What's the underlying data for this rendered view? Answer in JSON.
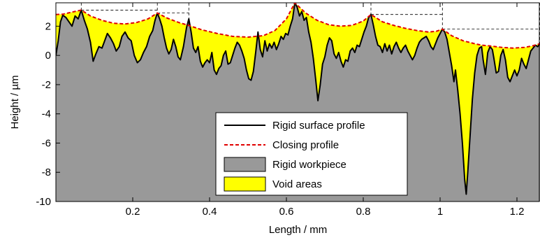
{
  "chart_data": {
    "type": "area",
    "xlabel": "Length / mm",
    "ylabel": "Height / µm",
    "xlim": [
      0,
      1.26
    ],
    "ylim": [
      -10,
      3.6
    ],
    "x_ticks": [
      0.2,
      0.4,
      0.6,
      0.8,
      1,
      1.2
    ],
    "x_tick_labels": [
      "0.2",
      "0.4",
      "0.6",
      "0.8",
      "1",
      "1.2"
    ],
    "y_ticks": [
      2,
      0,
      -2,
      -4,
      -6,
      -8,
      -10
    ],
    "y_tick_labels": [
      "2",
      "0",
      "-2",
      "-4",
      "-6",
      "-8",
      "-10"
    ],
    "legend_position": "lower-center",
    "legend": [
      {
        "label": "Rigid surface profile",
        "style": "line",
        "color": "#000000"
      },
      {
        "label": "Closing profile",
        "style": "dashed-line",
        "color": "#e00000"
      },
      {
        "label": "Rigid workpiece",
        "style": "patch",
        "color": "#999999"
      },
      {
        "label": "Void areas",
        "style": "patch",
        "color": "#ffff00"
      }
    ],
    "colors": {
      "workpiece": "#999999",
      "void": "#ffff00",
      "closing": "#e00000",
      "profile": "#000000"
    },
    "series": [
      {
        "name": "Rigid surface profile",
        "points": [
          [
            0.0,
            0.0
          ],
          [
            0.006,
            1.0
          ],
          [
            0.012,
            2.3
          ],
          [
            0.018,
            2.75
          ],
          [
            0.026,
            2.6
          ],
          [
            0.034,
            2.3
          ],
          [
            0.042,
            2.0
          ],
          [
            0.05,
            2.7
          ],
          [
            0.058,
            2.5
          ],
          [
            0.066,
            3.1
          ],
          [
            0.074,
            2.4
          ],
          [
            0.082,
            1.8
          ],
          [
            0.09,
            0.9
          ],
          [
            0.097,
            -0.4
          ],
          [
            0.104,
            0.1
          ],
          [
            0.112,
            0.6
          ],
          [
            0.12,
            0.5
          ],
          [
            0.127,
            1.0
          ],
          [
            0.134,
            1.5
          ],
          [
            0.142,
            1.2
          ],
          [
            0.15,
            0.8
          ],
          [
            0.157,
            0.3
          ],
          [
            0.165,
            0.6
          ],
          [
            0.172,
            1.3
          ],
          [
            0.18,
            1.6
          ],
          [
            0.188,
            1.2
          ],
          [
            0.196,
            1.0
          ],
          [
            0.204,
            0.0
          ],
          [
            0.212,
            -0.5
          ],
          [
            0.22,
            -0.3
          ],
          [
            0.228,
            0.2
          ],
          [
            0.236,
            0.6
          ],
          [
            0.244,
            1.3
          ],
          [
            0.252,
            1.7
          ],
          [
            0.258,
            2.4
          ],
          [
            0.264,
            2.9
          ],
          [
            0.27,
            2.5
          ],
          [
            0.276,
            2.0
          ],
          [
            0.282,
            1.2
          ],
          [
            0.288,
            0.5
          ],
          [
            0.294,
            0.1
          ],
          [
            0.3,
            0.4
          ],
          [
            0.306,
            1.1
          ],
          [
            0.312,
            0.6
          ],
          [
            0.318,
            -0.1
          ],
          [
            0.324,
            -0.3
          ],
          [
            0.332,
            0.6
          ],
          [
            0.34,
            1.9
          ],
          [
            0.346,
            2.5
          ],
          [
            0.352,
            1.6
          ],
          [
            0.358,
            0.5
          ],
          [
            0.364,
            0.2
          ],
          [
            0.37,
            0.6
          ],
          [
            0.376,
            -0.4
          ],
          [
            0.382,
            -0.8
          ],
          [
            0.388,
            -0.5
          ],
          [
            0.394,
            -0.3
          ],
          [
            0.4,
            -0.5
          ],
          [
            0.406,
            0.2
          ],
          [
            0.412,
            -1.0
          ],
          [
            0.418,
            -1.3
          ],
          [
            0.424,
            -0.9
          ],
          [
            0.43,
            -0.7
          ],
          [
            0.436,
            0.0
          ],
          [
            0.442,
            0.3
          ],
          [
            0.448,
            -0.6
          ],
          [
            0.454,
            -0.5
          ],
          [
            0.46,
            0.0
          ],
          [
            0.466,
            0.5
          ],
          [
            0.472,
            0.9
          ],
          [
            0.478,
            0.7
          ],
          [
            0.484,
            0.3
          ],
          [
            0.49,
            -0.2
          ],
          [
            0.496,
            -1.0
          ],
          [
            0.502,
            -1.6
          ],
          [
            0.508,
            -1.7
          ],
          [
            0.514,
            -1.1
          ],
          [
            0.52,
            0.2
          ],
          [
            0.526,
            1.6
          ],
          [
            0.532,
            0.4
          ],
          [
            0.538,
            -0.1
          ],
          [
            0.544,
            1.0
          ],
          [
            0.55,
            0.3
          ],
          [
            0.556,
            0.8
          ],
          [
            0.562,
            0.5
          ],
          [
            0.568,
            0.9
          ],
          [
            0.574,
            0.4
          ],
          [
            0.58,
            0.8
          ],
          [
            0.586,
            1.3
          ],
          [
            0.592,
            1.1
          ],
          [
            0.598,
            1.5
          ],
          [
            0.604,
            1.4
          ],
          [
            0.61,
            2.0
          ],
          [
            0.616,
            2.5
          ],
          [
            0.622,
            3.6
          ],
          [
            0.628,
            3.3
          ],
          [
            0.634,
            2.7
          ],
          [
            0.64,
            3.0
          ],
          [
            0.646,
            2.4
          ],
          [
            0.652,
            2.6
          ],
          [
            0.658,
            1.6
          ],
          [
            0.664,
            0.9
          ],
          [
            0.67,
            -0.2
          ],
          [
            0.676,
            -1.6
          ],
          [
            0.682,
            -3.1
          ],
          [
            0.688,
            -2.0
          ],
          [
            0.694,
            -0.6
          ],
          [
            0.7,
            -0.1
          ],
          [
            0.706,
            0.7
          ],
          [
            0.712,
            1.2
          ],
          [
            0.718,
            1.0
          ],
          [
            0.724,
            0.1
          ],
          [
            0.73,
            -0.2
          ],
          [
            0.736,
            0.2
          ],
          [
            0.742,
            -0.4
          ],
          [
            0.748,
            -0.8
          ],
          [
            0.754,
            -0.3
          ],
          [
            0.76,
            -0.4
          ],
          [
            0.766,
            0.3
          ],
          [
            0.772,
            0.5
          ],
          [
            0.778,
            0.2
          ],
          [
            0.784,
            0.7
          ],
          [
            0.79,
            0.6
          ],
          [
            0.796,
            1.1
          ],
          [
            0.802,
            1.6
          ],
          [
            0.808,
            2.0
          ],
          [
            0.814,
            2.6
          ],
          [
            0.82,
            2.8
          ],
          [
            0.826,
            2.1
          ],
          [
            0.832,
            1.3
          ],
          [
            0.838,
            0.7
          ],
          [
            0.844,
            0.6
          ],
          [
            0.85,
            0.2
          ],
          [
            0.856,
            0.8
          ],
          [
            0.862,
            0.3
          ],
          [
            0.868,
            0.7
          ],
          [
            0.874,
            0.1
          ],
          [
            0.88,
            0.6
          ],
          [
            0.886,
            0.9
          ],
          [
            0.892,
            0.5
          ],
          [
            0.898,
            0.2
          ],
          [
            0.904,
            0.5
          ],
          [
            0.91,
            0.7
          ],
          [
            0.916,
            0.3
          ],
          [
            0.922,
            0.0
          ],
          [
            0.928,
            -0.3
          ],
          [
            0.934,
            0.0
          ],
          [
            0.94,
            0.5
          ],
          [
            0.946,
            0.9
          ],
          [
            0.952,
            1.1
          ],
          [
            0.958,
            1.2
          ],
          [
            0.964,
            1.3
          ],
          [
            0.97,
            1.0
          ],
          [
            0.976,
            0.6
          ],
          [
            0.982,
            0.4
          ],
          [
            0.988,
            0.8
          ],
          [
            0.994,
            1.2
          ],
          [
            1.0,
            1.5
          ],
          [
            1.006,
            1.8
          ],
          [
            1.012,
            1.6
          ],
          [
            1.018,
            1.1
          ],
          [
            1.024,
            0.2
          ],
          [
            1.03,
            -0.7
          ],
          [
            1.036,
            -1.8
          ],
          [
            1.04,
            -1.0
          ],
          [
            1.046,
            -2.4
          ],
          [
            1.052,
            -4.0
          ],
          [
            1.058,
            -6.0
          ],
          [
            1.064,
            -8.5
          ],
          [
            1.068,
            -9.5
          ],
          [
            1.072,
            -8.0
          ],
          [
            1.078,
            -5.5
          ],
          [
            1.084,
            -3.0
          ],
          [
            1.09,
            -1.2
          ],
          [
            1.096,
            0.0
          ],
          [
            1.102,
            0.5
          ],
          [
            1.108,
            0.6
          ],
          [
            1.112,
            -0.3
          ],
          [
            1.118,
            -1.3
          ],
          [
            1.124,
            0.2
          ],
          [
            1.13,
            0.6
          ],
          [
            1.136,
            0.4
          ],
          [
            1.14,
            -0.2
          ],
          [
            1.146,
            -1.2
          ],
          [
            1.152,
            -1.1
          ],
          [
            1.158,
            0.0
          ],
          [
            1.164,
            0.4
          ],
          [
            1.17,
            -0.3
          ],
          [
            1.176,
            -1.5
          ],
          [
            1.182,
            -1.8
          ],
          [
            1.188,
            -1.4
          ],
          [
            1.194,
            -1.0
          ],
          [
            1.2,
            -1.4
          ],
          [
            1.206,
            -1.0
          ],
          [
            1.212,
            -0.2
          ],
          [
            1.218,
            -0.6
          ],
          [
            1.224,
            -0.9
          ],
          [
            1.23,
            -0.3
          ],
          [
            1.236,
            0.3
          ],
          [
            1.242,
            0.5
          ],
          [
            1.248,
            0.7
          ],
          [
            1.254,
            0.6
          ],
          [
            1.26,
            0.8
          ]
        ]
      },
      {
        "name": "Closing profile",
        "points": [
          [
            0.0,
            2.8
          ],
          [
            0.018,
            2.82
          ],
          [
            0.04,
            2.95
          ],
          [
            0.066,
            3.1
          ],
          [
            0.09,
            2.7
          ],
          [
            0.12,
            2.4
          ],
          [
            0.15,
            2.2
          ],
          [
            0.18,
            2.15
          ],
          [
            0.21,
            2.25
          ],
          [
            0.24,
            2.5
          ],
          [
            0.264,
            2.9
          ],
          [
            0.29,
            2.55
          ],
          [
            0.32,
            2.25
          ],
          [
            0.346,
            2.05
          ],
          [
            0.38,
            1.75
          ],
          [
            0.42,
            1.5
          ],
          [
            0.46,
            1.3
          ],
          [
            0.5,
            1.25
          ],
          [
            0.54,
            1.35
          ],
          [
            0.57,
            1.7
          ],
          [
            0.6,
            2.5
          ],
          [
            0.622,
            3.6
          ],
          [
            0.65,
            2.9
          ],
          [
            0.68,
            2.4
          ],
          [
            0.71,
            2.1
          ],
          [
            0.74,
            2.0
          ],
          [
            0.77,
            2.05
          ],
          [
            0.8,
            2.35
          ],
          [
            0.82,
            2.8
          ],
          [
            0.85,
            2.3
          ],
          [
            0.88,
            2.05
          ],
          [
            0.91,
            1.85
          ],
          [
            0.94,
            1.7
          ],
          [
            0.97,
            1.6
          ],
          [
            0.99,
            1.65
          ],
          [
            1.006,
            1.8
          ],
          [
            1.03,
            1.35
          ],
          [
            1.06,
            1.0
          ],
          [
            1.09,
            0.8
          ],
          [
            1.108,
            0.7
          ],
          [
            1.13,
            0.65
          ],
          [
            1.16,
            0.55
          ],
          [
            1.19,
            0.5
          ],
          [
            1.22,
            0.55
          ],
          [
            1.24,
            0.65
          ],
          [
            1.26,
            0.8
          ]
        ]
      }
    ],
    "secondary_marks": {
      "description": "thin dashed black guide lines at the local peaks of the closing profile",
      "peak_x": [
        0.066,
        0.264,
        0.346,
        0.622,
        0.82,
        1.006,
        1.26
      ]
    }
  }
}
